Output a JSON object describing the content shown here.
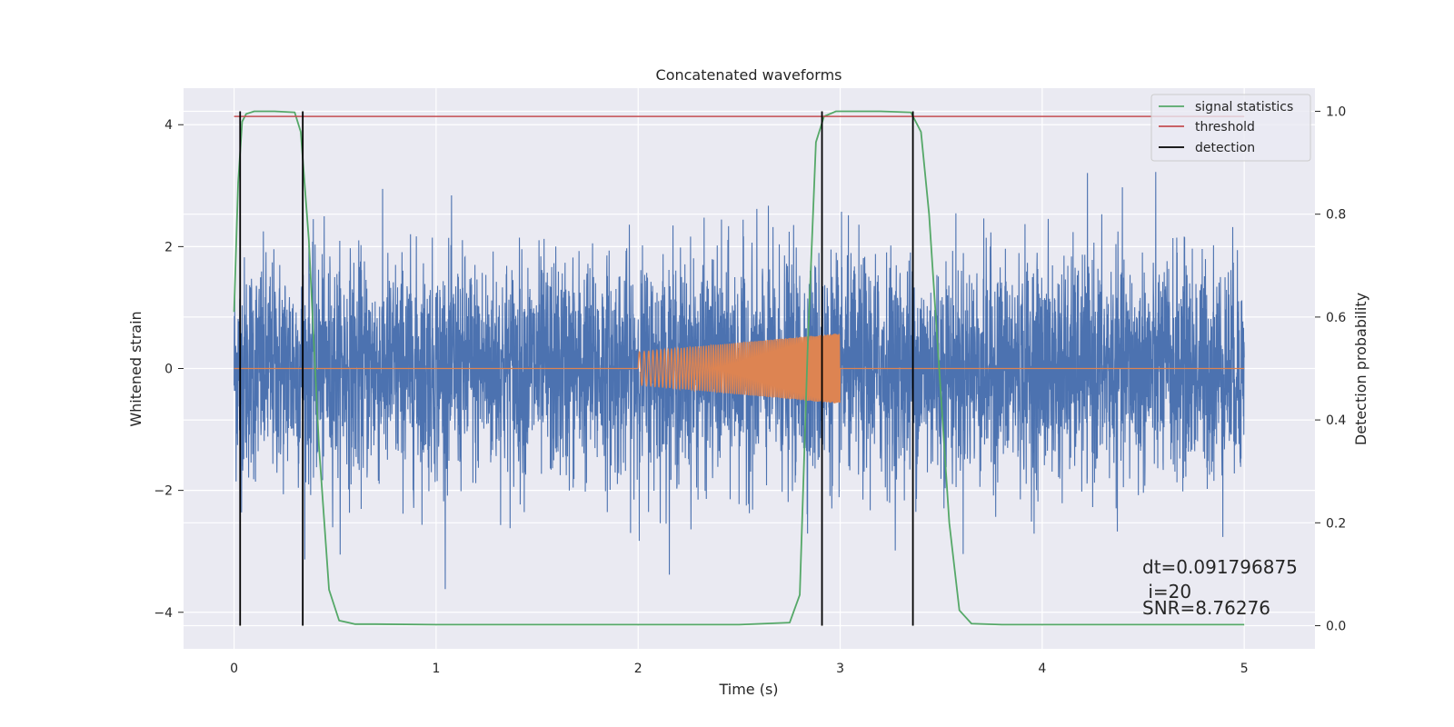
{
  "chart_data": {
    "type": "line",
    "title": "Concatenated waveforms",
    "xlabel": "Time (s)",
    "ylabel": "Whitened strain",
    "y2label": "Detection probability",
    "xlim": [
      -0.25,
      5.35
    ],
    "ylim": [
      -4.6,
      4.6
    ],
    "y2lim": [
      -0.045,
      1.045
    ],
    "x_ticks": [
      0,
      1,
      2,
      3,
      4,
      5
    ],
    "y_ticks": [
      -4,
      -2,
      0,
      2,
      4
    ],
    "y2_ticks": [
      0.0,
      0.2,
      0.4,
      0.6,
      0.8,
      1.0
    ],
    "grid": true,
    "legend_position": "top-right",
    "legend": [
      {
        "label": "signal statistics",
        "color": "#55a868"
      },
      {
        "label": "threshold",
        "color": "#c44e52"
      },
      {
        "label": "detection",
        "color": "#000000"
      }
    ],
    "noise_series": {
      "color": "#4c72b0",
      "x_range": [
        0.0,
        5.0
      ],
      "approx_sigma": 0.9,
      "approx_peak_range": [
        -4.2,
        4.15
      ]
    },
    "injected_signal": {
      "color": "#dd8452",
      "x_range": [
        2.0,
        3.0
      ],
      "amplitude_start": 0.27,
      "amplitude_end": 0.58,
      "description_free": true
    },
    "signal_statistics": {
      "color": "#55a868",
      "axis": "right",
      "x": [
        0.0,
        0.02,
        0.04,
        0.06,
        0.1,
        0.2,
        0.3,
        0.33,
        0.37,
        0.42,
        0.47,
        0.52,
        0.6,
        0.7,
        1.0,
        1.5,
        2.0,
        2.5,
        2.75,
        2.8,
        2.84,
        2.88,
        2.92,
        2.98,
        3.2,
        3.35,
        3.4,
        3.44,
        3.49,
        3.54,
        3.59,
        3.65,
        3.8,
        4.2,
        4.6,
        5.0
      ],
      "y": [
        0.61,
        0.86,
        0.98,
        0.995,
        1.0,
        1.0,
        0.998,
        0.96,
        0.75,
        0.35,
        0.07,
        0.01,
        0.003,
        0.003,
        0.002,
        0.002,
        0.002,
        0.002,
        0.006,
        0.06,
        0.55,
        0.94,
        0.99,
        1.0,
        1.0,
        0.998,
        0.96,
        0.8,
        0.5,
        0.2,
        0.03,
        0.004,
        0.002,
        0.002,
        0.002,
        0.002
      ]
    },
    "threshold": {
      "color": "#c44e52",
      "axis": "right",
      "value": 0.99,
      "x_range": [
        0.0,
        5.0
      ]
    },
    "detections": {
      "color": "#000000",
      "x": [
        0.03,
        0.34,
        2.91,
        3.36
      ]
    },
    "annotations": [
      "dt=0.091796875",
      " i=20",
      "SNR=8.76276"
    ]
  }
}
